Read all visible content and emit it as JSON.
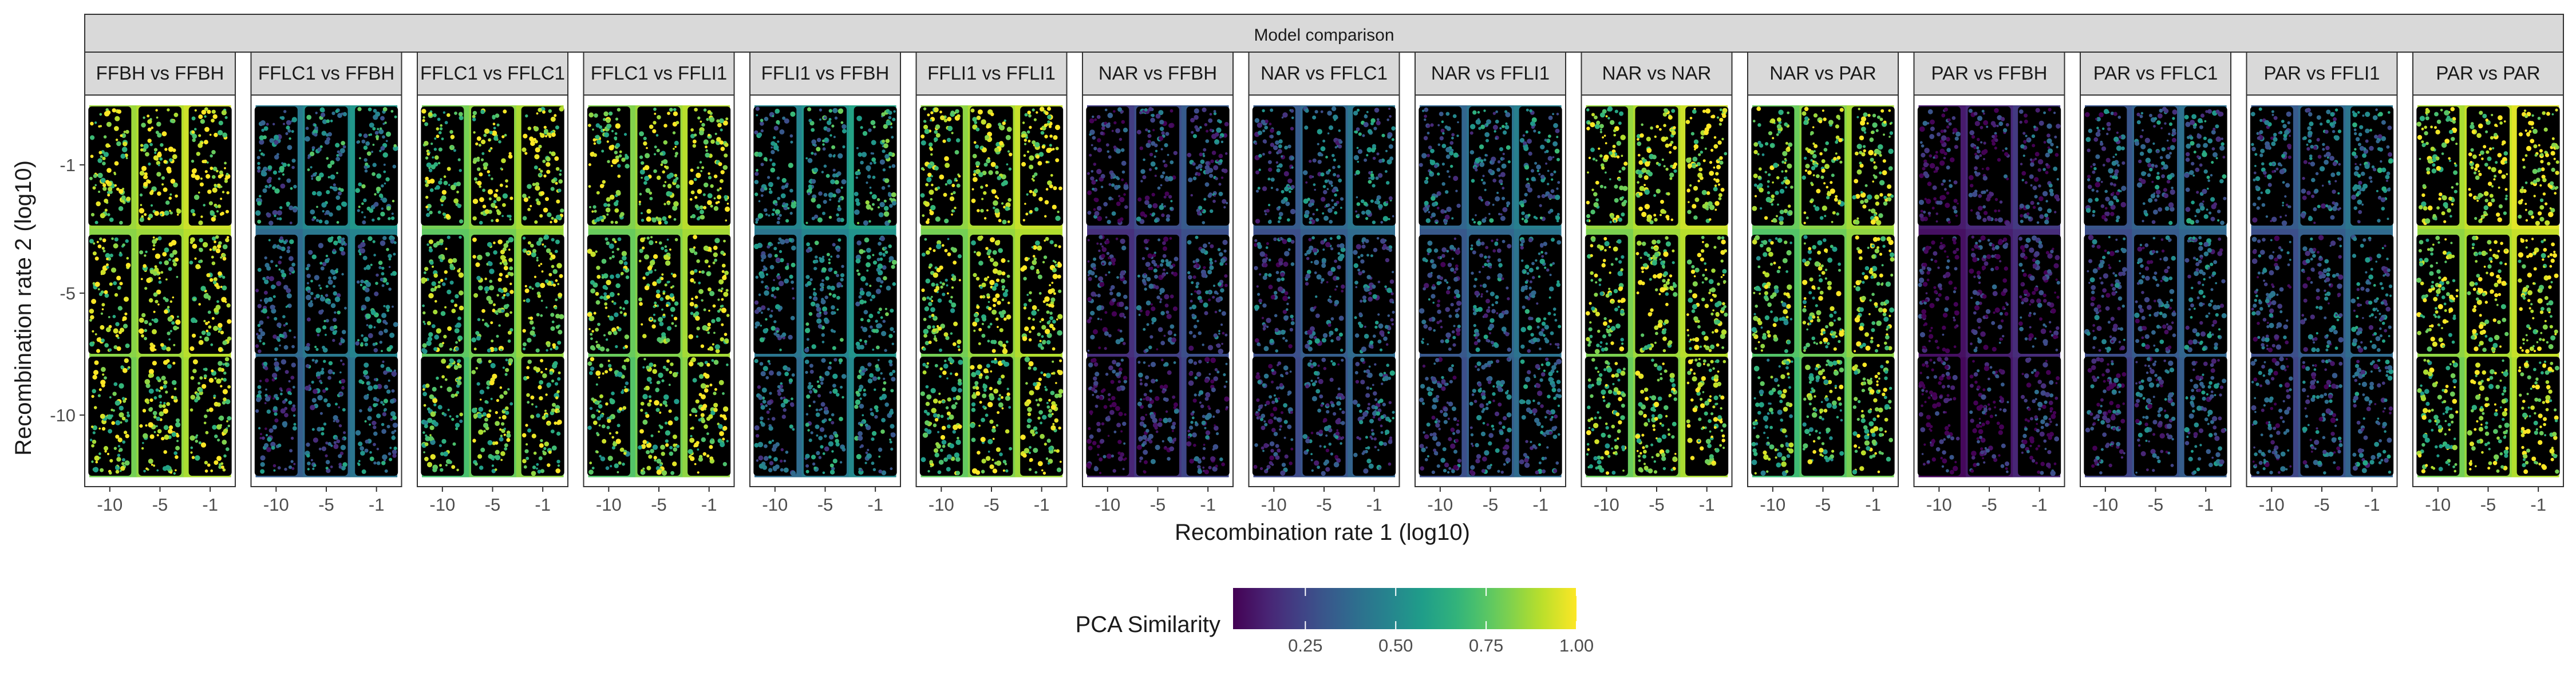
{
  "chart_data": {
    "type": "heatmap",
    "title": "Model comparison",
    "xlabel": "Recombination rate 1 (log10)",
    "ylabel": "Recombination rate 2 (log10)",
    "x_ticks": [
      "-10",
      "-5",
      "-1"
    ],
    "y_ticks": [
      "-1",
      "-5",
      "-10"
    ],
    "legend": {
      "title": "PCA Similarity",
      "ticks": [
        "0.25",
        "0.50",
        "0.75",
        "1.00"
      ],
      "tick_values": [
        0.25,
        0.5,
        0.75,
        1.0
      ],
      "range": [
        0.05,
        1.0
      ],
      "colormap": "viridis",
      "placement": "bottom"
    },
    "facets": [
      {
        "label": "FFBH vs FFBH",
        "values": [
          [
            0.86,
            0.89,
            0.93
          ],
          [
            0.83,
            0.86,
            0.9
          ],
          [
            0.8,
            0.84,
            0.88
          ]
        ]
      },
      {
        "label": "FFLC1 vs FFBH",
        "values": [
          [
            0.44,
            0.5,
            0.55
          ],
          [
            0.38,
            0.43,
            0.48
          ],
          [
            0.33,
            0.37,
            0.42
          ]
        ]
      },
      {
        "label": "FFLC1 vs FFLC1",
        "values": [
          [
            0.8,
            0.84,
            0.88
          ],
          [
            0.76,
            0.8,
            0.85
          ],
          [
            0.72,
            0.78,
            0.83
          ]
        ]
      },
      {
        "label": "FFLC1 vs FFLI1",
        "values": [
          [
            0.82,
            0.86,
            0.9
          ],
          [
            0.78,
            0.82,
            0.87
          ],
          [
            0.74,
            0.8,
            0.84
          ]
        ]
      },
      {
        "label": "FFLI1 vs FFBH",
        "values": [
          [
            0.48,
            0.54,
            0.6
          ],
          [
            0.42,
            0.48,
            0.54
          ],
          [
            0.38,
            0.44,
            0.5
          ]
        ]
      },
      {
        "label": "FFLI1 vs FFLI1",
        "values": [
          [
            0.84,
            0.88,
            0.92
          ],
          [
            0.8,
            0.85,
            0.89
          ],
          [
            0.77,
            0.82,
            0.86
          ]
        ]
      },
      {
        "label": "NAR vs FFBH",
        "values": [
          [
            0.22,
            0.27,
            0.32
          ],
          [
            0.18,
            0.23,
            0.28
          ],
          [
            0.15,
            0.2,
            0.25
          ]
        ]
      },
      {
        "label": "NAR vs FFLC1",
        "values": [
          [
            0.32,
            0.37,
            0.42
          ],
          [
            0.28,
            0.33,
            0.38
          ],
          [
            0.26,
            0.3,
            0.35
          ]
        ]
      },
      {
        "label": "NAR vs FFLI1",
        "values": [
          [
            0.36,
            0.41,
            0.46
          ],
          [
            0.31,
            0.36,
            0.41
          ],
          [
            0.28,
            0.33,
            0.38
          ]
        ]
      },
      {
        "label": "NAR vs NAR",
        "values": [
          [
            0.85,
            0.89,
            0.93
          ],
          [
            0.81,
            0.86,
            0.9
          ],
          [
            0.78,
            0.83,
            0.88
          ]
        ]
      },
      {
        "label": "NAR vs PAR",
        "values": [
          [
            0.78,
            0.83,
            0.87
          ],
          [
            0.74,
            0.79,
            0.84
          ],
          [
            0.7,
            0.75,
            0.8
          ]
        ]
      },
      {
        "label": "PAR vs FFBH",
        "values": [
          [
            0.12,
            0.16,
            0.21
          ],
          [
            0.09,
            0.13,
            0.17
          ],
          [
            0.07,
            0.11,
            0.15
          ]
        ]
      },
      {
        "label": "PAR vs FFLC1",
        "values": [
          [
            0.3,
            0.35,
            0.4
          ],
          [
            0.27,
            0.32,
            0.36
          ],
          [
            0.24,
            0.29,
            0.33
          ]
        ]
      },
      {
        "label": "PAR vs FFLI1",
        "values": [
          [
            0.32,
            0.37,
            0.42
          ],
          [
            0.28,
            0.33,
            0.38
          ],
          [
            0.25,
            0.3,
            0.35
          ]
        ]
      },
      {
        "label": "PAR vs PAR",
        "values": [
          [
            0.88,
            0.92,
            0.96
          ],
          [
            0.84,
            0.88,
            0.92
          ],
          [
            0.8,
            0.85,
            0.89
          ]
        ]
      }
    ]
  }
}
